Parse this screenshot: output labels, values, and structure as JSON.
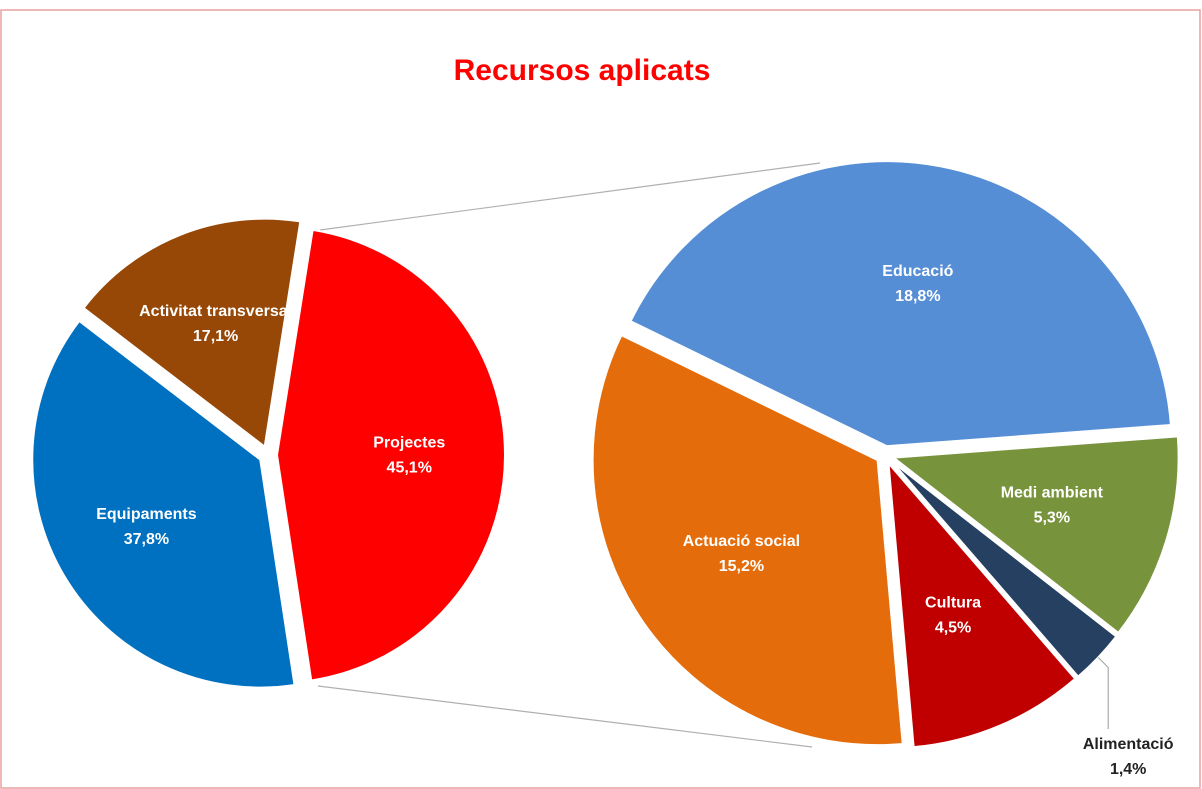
{
  "chart_data": [
    {
      "type": "pie",
      "title": "Recursos aplicats",
      "categories": [
        "Projectes",
        "Equipaments",
        "Activitat transversal"
      ],
      "values": [
        45.1,
        37.8,
        17.1
      ],
      "value_labels": [
        "45,1%",
        "37,8%",
        "17,1%"
      ],
      "colors": [
        "#ff0000",
        "#0070c0",
        "#974806"
      ]
    },
    {
      "type": "pie",
      "categories": [
        "Educació",
        "Medi ambient",
        "Alimentació",
        "Cultura",
        "Actuació social"
      ],
      "values": [
        18.8,
        5.3,
        1.4,
        4.5,
        15.2
      ],
      "value_labels": [
        "18,8%",
        "5,3%",
        "1,4%",
        "4,5%",
        "15,2%"
      ],
      "colors": [
        "#558ed5",
        "#77933c",
        "#254061",
        "#c00000",
        "#e46c0a"
      ]
    }
  ]
}
